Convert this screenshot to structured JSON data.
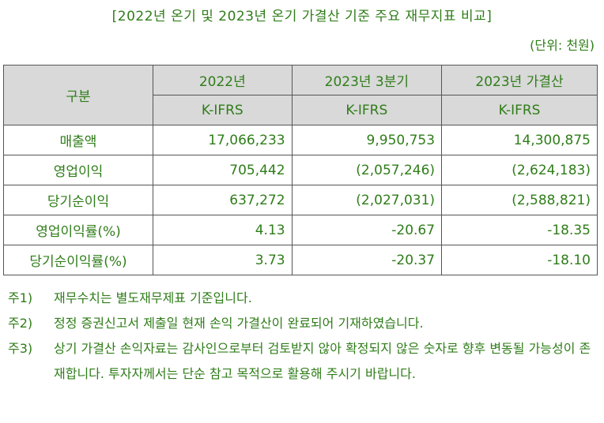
{
  "title": "[2022년 온기 및 2023년 온기 가결산 기준 주요 재무지표 비교]",
  "unit": "(단위: 천원)",
  "table": {
    "row_header": "구분",
    "columns": [
      {
        "period": "2022년",
        "standard": "K-IFRS"
      },
      {
        "period": "2023년 3분기",
        "standard": "K-IFRS"
      },
      {
        "period": "2023년 가결산",
        "standard": "K-IFRS"
      }
    ],
    "rows": [
      {
        "label": "매출액",
        "values": [
          "17,066,233",
          "9,950,753",
          "14,300,875"
        ]
      },
      {
        "label": "영업이익",
        "values": [
          "705,442",
          "(2,057,246)",
          "(2,624,183)"
        ]
      },
      {
        "label": "당기순이익",
        "values": [
          "637,272",
          "(2,027,031)",
          "(2,588,821)"
        ]
      },
      {
        "label": "영업이익률(%)",
        "values": [
          "4.13",
          "-20.67",
          "-18.35"
        ]
      },
      {
        "label": "당기순이익률(%)",
        "values": [
          "3.73",
          "-20.37",
          "-18.10"
        ]
      }
    ]
  },
  "notes": [
    {
      "key": "주1)",
      "text": "재무수치는 별도재무제표 기준입니다."
    },
    {
      "key": "주2)",
      "text": "정정 증권신고서 제출일 현재 손익 가결산이 완료되어 기재하였습니다."
    },
    {
      "key": "주3)",
      "text": "상기 가결산 손익자료는 감사인으로부터 검토받지 않아 확정되지 않은 숫자로 향후 변동될 가능성이 존재합니다. 투자자께서는 단순 참고 목적으로 활용해 주시기 바랍니다."
    }
  ]
}
